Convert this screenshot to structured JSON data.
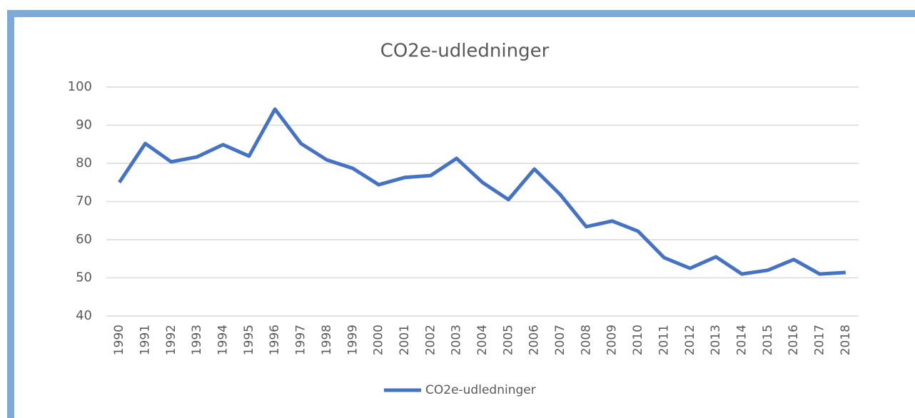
{
  "chart_data": {
    "type": "line",
    "title": "CO2e-udledninger",
    "categories": [
      "1990",
      "1991",
      "1992",
      "1993",
      "1994",
      "1995",
      "1996",
      "1997",
      "1998",
      "1999",
      "2000",
      "2001",
      "2002",
      "2003",
      "2004",
      "2005",
      "2006",
      "2007",
      "2008",
      "2009",
      "2010",
      "2011",
      "2012",
      "2013",
      "2014",
      "2015",
      "2016",
      "2017",
      "2018"
    ],
    "series": [
      {
        "name": "CO2e-udledninger",
        "color": "#4472c4",
        "values": [
          75.0,
          85.2,
          80.4,
          81.7,
          84.9,
          81.9,
          94.2,
          85.2,
          80.9,
          78.7,
          74.4,
          76.3,
          76.8,
          81.3,
          75.0,
          70.5,
          78.5,
          71.8,
          63.4,
          64.9,
          62.2,
          55.3,
          52.5,
          55.5,
          51.0,
          52.0,
          54.8,
          51.0,
          51.4
        ]
      }
    ],
    "ylim": [
      40,
      100
    ],
    "yticks": [
      40,
      50,
      60,
      70,
      80,
      90,
      100
    ],
    "grid": true,
    "legend": "bottom"
  }
}
